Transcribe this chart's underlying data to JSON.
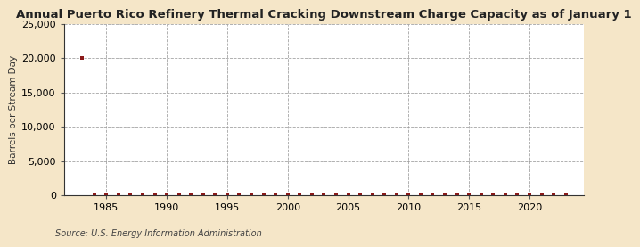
{
  "title": "Annual Puerto Rico Refinery Thermal Cracking Downstream Charge Capacity as of January 1",
  "ylabel": "Barrels per Stream Day",
  "source": "Source: U.S. Energy Information Administration",
  "background_color": "#f5e6c8",
  "plot_bg_color": "#ffffff",
  "marker_color": "#8b1a1a",
  "x_data": [
    1983,
    1984,
    1985,
    1986,
    1987,
    1988,
    1989,
    1990,
    1991,
    1992,
    1993,
    1994,
    1995,
    1996,
    1997,
    1998,
    1999,
    2000,
    2001,
    2002,
    2003,
    2004,
    2005,
    2006,
    2007,
    2008,
    2009,
    2010,
    2011,
    2012,
    2013,
    2014,
    2015,
    2016,
    2017,
    2018,
    2019,
    2020,
    2021,
    2022,
    2023
  ],
  "y_data": [
    20000,
    0,
    0,
    0,
    0,
    0,
    0,
    0,
    0,
    0,
    0,
    0,
    0,
    0,
    0,
    0,
    0,
    0,
    0,
    0,
    0,
    0,
    0,
    0,
    0,
    0,
    0,
    0,
    0,
    0,
    0,
    0,
    0,
    0,
    0,
    0,
    0,
    0,
    0,
    0,
    0
  ],
  "ylim": [
    0,
    25000
  ],
  "yticks": [
    0,
    5000,
    10000,
    15000,
    20000,
    25000
  ],
  "xlim": [
    1981.5,
    2024.5
  ],
  "xticks": [
    1985,
    1990,
    1995,
    2000,
    2005,
    2010,
    2015,
    2020
  ],
  "grid_color": "#999999",
  "title_fontsize": 9.5,
  "label_fontsize": 7.5,
  "tick_fontsize": 8,
  "source_fontsize": 7
}
